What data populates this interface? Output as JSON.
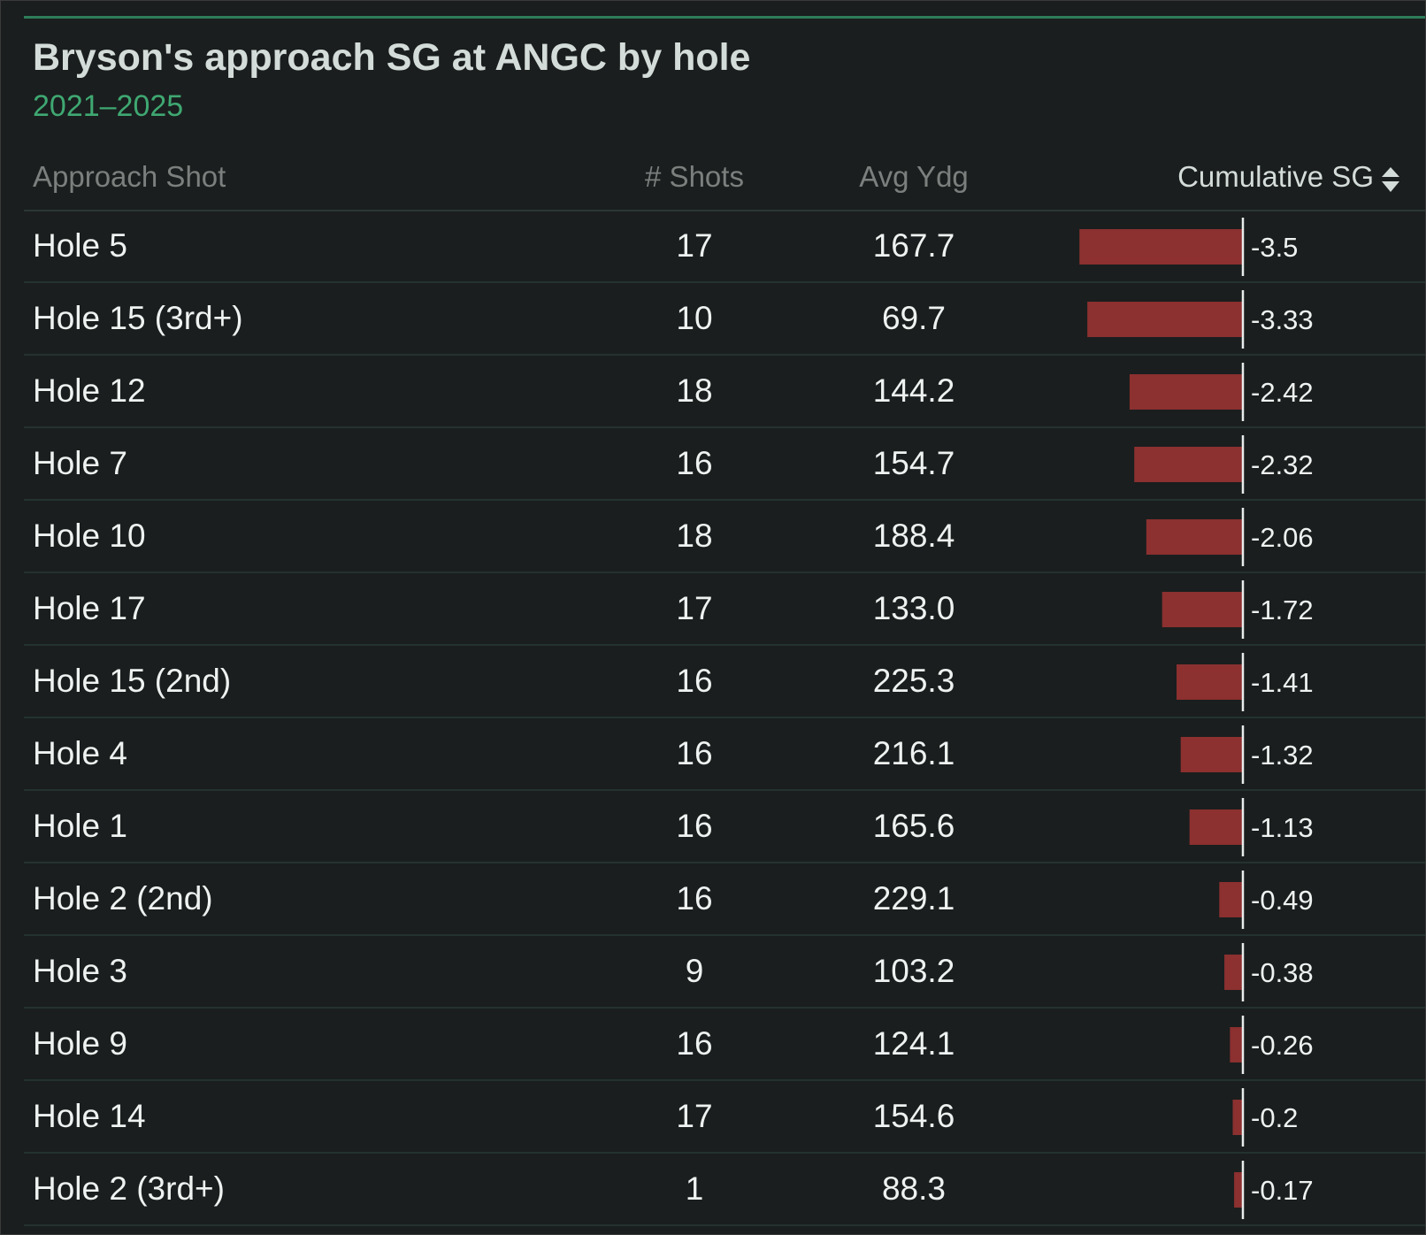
{
  "title": "Bryson's approach SG at ANGC by hole",
  "subtitle": "2021–2025",
  "columns": {
    "name": "Approach Shot",
    "shots": "# Shots",
    "ydg": "Avg Ydg",
    "sg": "Cumulative SG"
  },
  "sort_icon": "sort-updown-icon",
  "colors": {
    "bar_negative": "#8c3030",
    "axis": "#e8ecea",
    "accent": "#3fa872"
  },
  "rows": [
    {
      "name": "Hole 5",
      "shots": "17",
      "ydg": "167.7",
      "sg_label": "-3.5",
      "sg": -3.5
    },
    {
      "name": "Hole 15 (3rd+)",
      "shots": "10",
      "ydg": "69.7",
      "sg_label": "-3.33",
      "sg": -3.33
    },
    {
      "name": "Hole 12",
      "shots": "18",
      "ydg": "144.2",
      "sg_label": "-2.42",
      "sg": -2.42
    },
    {
      "name": "Hole 7",
      "shots": "16",
      "ydg": "154.7",
      "sg_label": "-2.32",
      "sg": -2.32
    },
    {
      "name": "Hole 10",
      "shots": "18",
      "ydg": "188.4",
      "sg_label": "-2.06",
      "sg": -2.06
    },
    {
      "name": "Hole 17",
      "shots": "17",
      "ydg": "133.0",
      "sg_label": "-1.72",
      "sg": -1.72
    },
    {
      "name": "Hole 15 (2nd)",
      "shots": "16",
      "ydg": "225.3",
      "sg_label": "-1.41",
      "sg": -1.41
    },
    {
      "name": "Hole 4",
      "shots": "16",
      "ydg": "216.1",
      "sg_label": "-1.32",
      "sg": -1.32
    },
    {
      "name": "Hole 1",
      "shots": "16",
      "ydg": "165.6",
      "sg_label": "-1.13",
      "sg": -1.13
    },
    {
      "name": "Hole 2 (2nd)",
      "shots": "16",
      "ydg": "229.1",
      "sg_label": "-0.49",
      "sg": -0.49
    },
    {
      "name": "Hole 3",
      "shots": "9",
      "ydg": "103.2",
      "sg_label": "-0.38",
      "sg": -0.38
    },
    {
      "name": "Hole 9",
      "shots": "16",
      "ydg": "124.1",
      "sg_label": "-0.26",
      "sg": -0.26
    },
    {
      "name": "Hole 14",
      "shots": "17",
      "ydg": "154.6",
      "sg_label": "-0.2",
      "sg": -0.2
    },
    {
      "name": "Hole 2 (3rd+)",
      "shots": "1",
      "ydg": "88.3",
      "sg_label": "-0.17",
      "sg": -0.17
    }
  ],
  "chart_data": {
    "type": "table",
    "title": "Bryson's approach SG at ANGC by hole",
    "subtitle": "2021–2025",
    "columns": [
      "Approach Shot",
      "# Shots",
      "Avg Ydg",
      "Cumulative SG"
    ],
    "categories": [
      "Hole 5",
      "Hole 15 (3rd+)",
      "Hole 12",
      "Hole 7",
      "Hole 10",
      "Hole 17",
      "Hole 15 (2nd)",
      "Hole 4",
      "Hole 1",
      "Hole 2 (2nd)",
      "Hole 3",
      "Hole 9",
      "Hole 14",
      "Hole 2 (3rd+)"
    ],
    "series": [
      {
        "name": "# Shots",
        "values": [
          17,
          10,
          18,
          16,
          18,
          17,
          16,
          16,
          16,
          16,
          9,
          16,
          17,
          1
        ]
      },
      {
        "name": "Avg Ydg",
        "values": [
          167.7,
          69.7,
          144.2,
          154.7,
          188.4,
          133.0,
          225.3,
          216.1,
          165.6,
          229.1,
          103.2,
          124.1,
          154.6,
          88.3
        ]
      },
      {
        "name": "Cumulative SG",
        "values": [
          -3.5,
          -3.33,
          -2.42,
          -2.32,
          -2.06,
          -1.72,
          -1.41,
          -1.32,
          -1.13,
          -0.49,
          -0.38,
          -0.26,
          -0.2,
          -0.17
        ]
      }
    ]
  }
}
